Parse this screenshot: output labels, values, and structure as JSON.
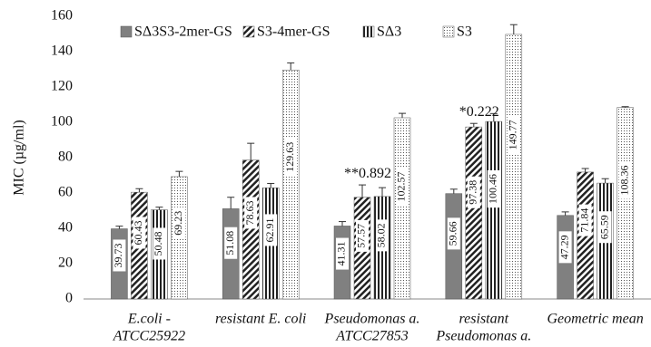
{
  "chart_data": {
    "type": "bar",
    "y_label": "MIC (µg/ml)",
    "ylim": [
      0,
      160
    ],
    "yticks": [
      0,
      20,
      40,
      60,
      80,
      100,
      120,
      140,
      160
    ],
    "grid": false,
    "legend": "top",
    "categories": [
      [
        "E.coli -",
        "ATCC25922"
      ],
      [
        "resistant E. coli"
      ],
      [
        "Pseudomonas a.",
        "ATCC27853"
      ],
      [
        "resistant",
        "Pseudomonas a."
      ],
      [
        "Geometric mean"
      ]
    ],
    "series": [
      {
        "name": "SΔ3S3-2mer-GS",
        "color": "#808080",
        "pattern": "solid",
        "values": [
          39.73,
          51.08,
          41.31,
          59.66,
          47.29
        ],
        "errors": [
          1.5,
          6.5,
          2.5,
          2.5,
          2
        ]
      },
      {
        "name": "S3-4mer-GS",
        "color": "#222222",
        "pattern": "diagonal",
        "values": [
          60.43,
          78.63,
          57.57,
          97.38,
          71.84
        ],
        "errors": [
          2,
          9.5,
          7,
          2,
          2
        ]
      },
      {
        "name": "SΔ3",
        "color": "#222222",
        "pattern": "vertical",
        "values": [
          50.48,
          62.91,
          58.02,
          100.46,
          65.59
        ],
        "errors": [
          1.5,
          2.5,
          5,
          4.5,
          2.5
        ]
      },
      {
        "name": "S3",
        "color": "#555555",
        "pattern": "dots",
        "values": [
          69.23,
          129.63,
          102.57,
          149.77,
          108.36
        ],
        "errors": [
          3,
          4,
          2.5,
          5.5,
          0.5
        ]
      }
    ],
    "annotations": [
      "**0.892",
      "*0.222"
    ]
  }
}
